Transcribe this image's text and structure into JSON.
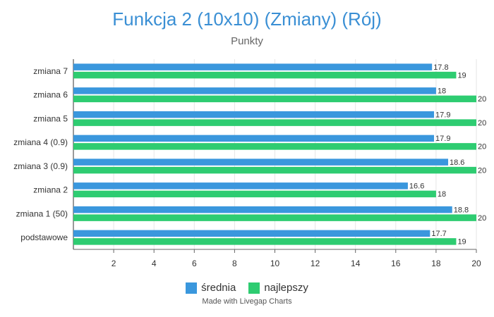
{
  "chart_data": {
    "type": "bar",
    "orientation": "horizontal",
    "title": "Funkcja 2 (10x10) (Zmiany) (Rój)",
    "subtitle": "Punkty",
    "categories": [
      "zmiana 7",
      "zmiana 6",
      "zmiana 5",
      "zmiana 4 (0.9)",
      "zmiana 3 (0.9)",
      "zmiana 2",
      "zmiana 1 (50)",
      "podstawowe"
    ],
    "series": [
      {
        "name": "średnia",
        "color": "#3a97dd",
        "values": [
          17.8,
          18,
          17.9,
          17.9,
          18.6,
          16.6,
          18.8,
          17.7
        ],
        "labels": [
          "17.8",
          "18",
          "17.9",
          "17.9",
          "18.6",
          "16.6",
          "18.8",
          "17.7"
        ]
      },
      {
        "name": "najlepszy",
        "color": "#2ecc71",
        "values": [
          19,
          20,
          20,
          20,
          20,
          18,
          20,
          19
        ],
        "labels": [
          "19",
          "20",
          "20",
          "20",
          "20",
          "18",
          "20",
          "19"
        ]
      }
    ],
    "xlim": [
      0,
      20
    ],
    "xticks": [
      2,
      4,
      6,
      8,
      10,
      12,
      14,
      16,
      18,
      20
    ],
    "grid": true,
    "legend_position": "bottom"
  },
  "credit": "Made with Livegap Charts"
}
